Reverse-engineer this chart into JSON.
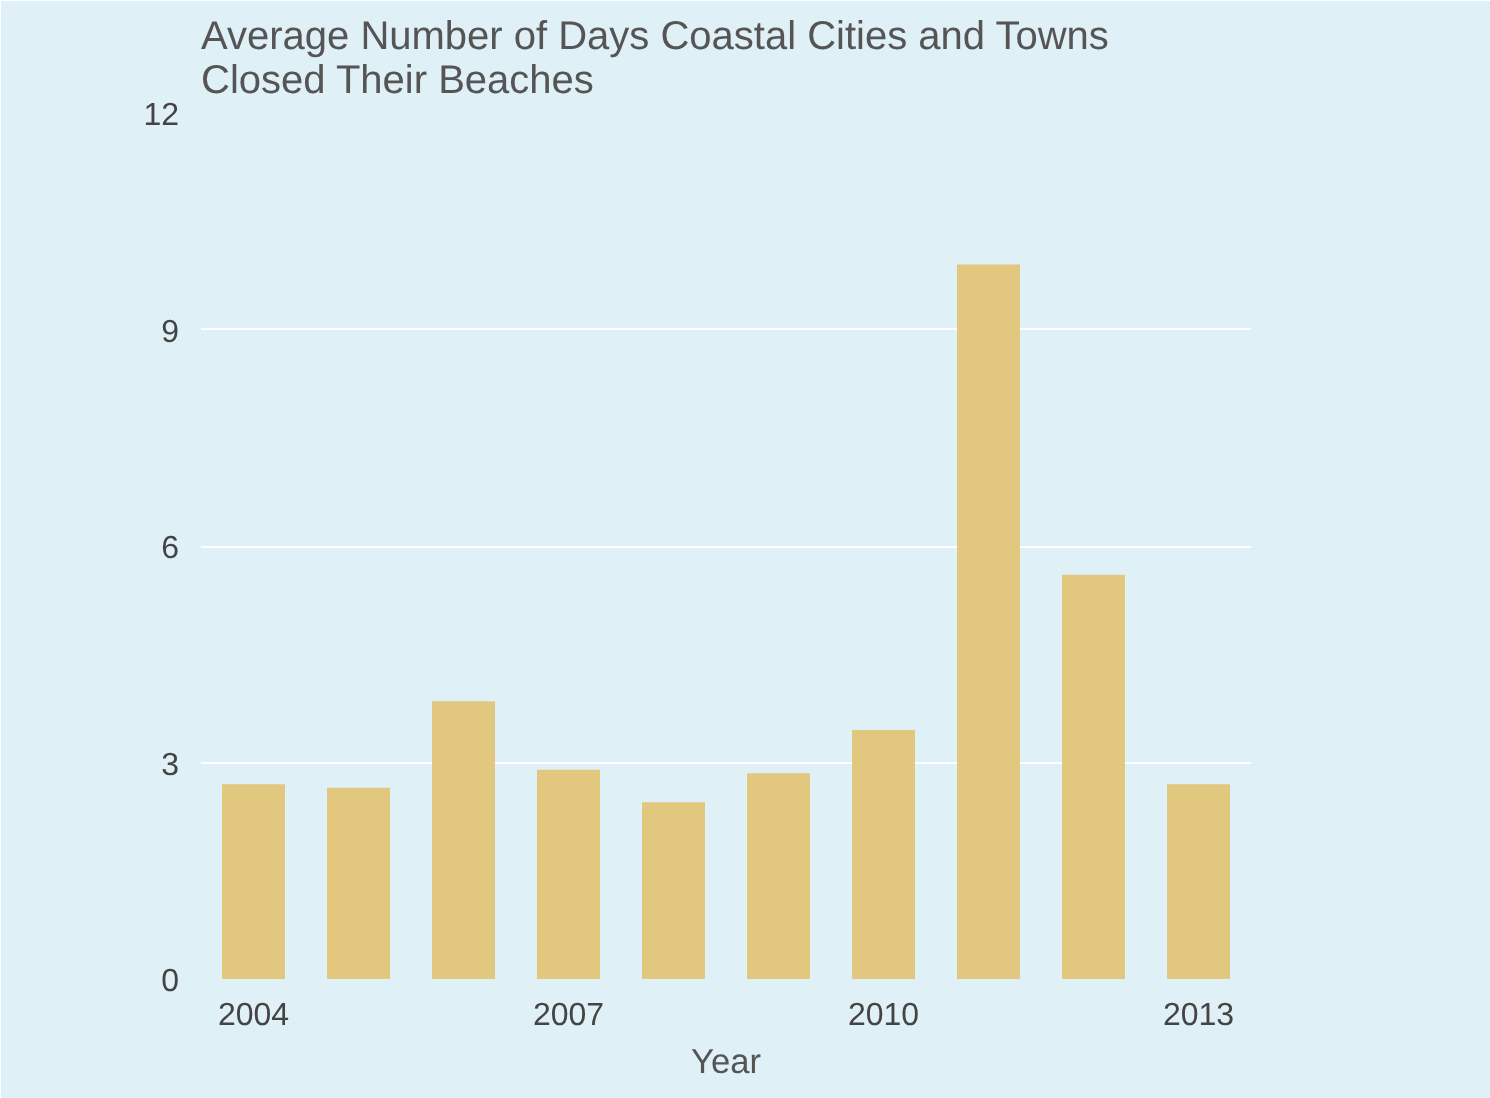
{
  "chart_data": {
    "type": "bar",
    "title": "Average Number of Days Coastal Cities and Towns\nClosed Their Beaches",
    "xlabel": "Year",
    "x": [
      2004,
      2005,
      2006,
      2007,
      2008,
      2009,
      2010,
      2011,
      2012,
      2013
    ],
    "values": [
      2.7,
      2.65,
      3.85,
      2.9,
      2.45,
      2.85,
      3.45,
      9.9,
      5.6,
      2.7
    ],
    "color": "#e2c87f",
    "xlim": [
      2003.5,
      2013.5
    ],
    "xticks": [
      2004,
      2007,
      2010,
      2013
    ],
    "ylim": [
      0,
      12
    ],
    "yticks": [
      0,
      3,
      6,
      9,
      12
    ],
    "grid": "y"
  }
}
